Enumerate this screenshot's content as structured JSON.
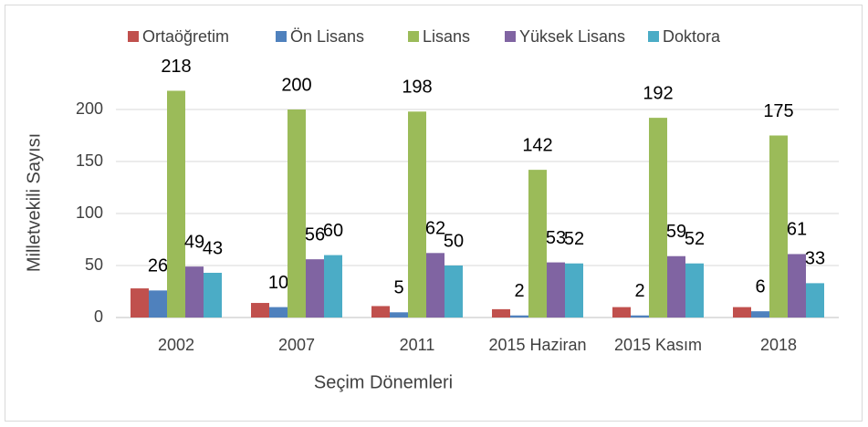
{
  "chart_data": {
    "type": "bar",
    "categories": [
      "2002",
      "2007",
      "2011",
      "2015 Haziran",
      "2015 Kasım",
      "2018"
    ],
    "series": [
      {
        "name": "Ortaöğretim",
        "color": "#c0504d",
        "values": [
          28,
          14,
          11,
          8,
          10,
          10
        ]
      },
      {
        "name": "Ön Lisans",
        "color": "#4f81bd",
        "values": [
          26,
          10,
          5,
          2,
          2,
          6
        ],
        "labels": true
      },
      {
        "name": "Lisans",
        "color": "#9bbb59",
        "values": [
          218,
          200,
          198,
          142,
          192,
          175
        ],
        "labels": true
      },
      {
        "name": "Yüksek Lisans",
        "color": "#8064a2",
        "values": [
          49,
          56,
          62,
          53,
          59,
          61
        ],
        "labels": true
      },
      {
        "name": "Doktora",
        "color": "#4bacc6",
        "values": [
          43,
          60,
          50,
          52,
          52,
          33
        ],
        "labels": true
      }
    ],
    "xlabel": "Seçim Dönemleri",
    "ylabel": "Milletvekili Sayısı",
    "ylim": [
      0,
      250
    ],
    "yticks": [
      0,
      50,
      100,
      150,
      200
    ],
    "grid": true,
    "legend": "top"
  }
}
